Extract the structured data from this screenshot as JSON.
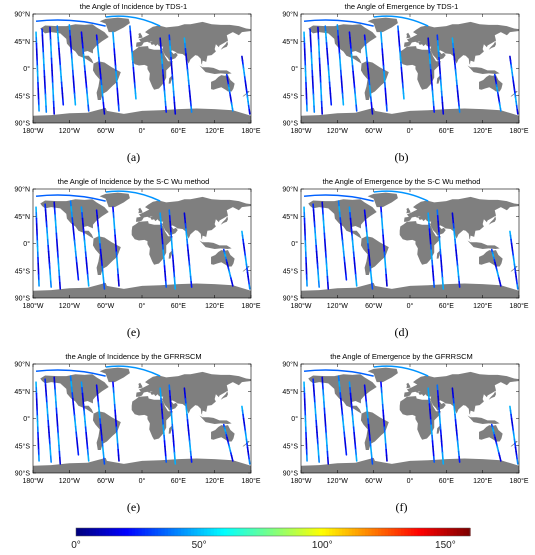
{
  "panels": [
    {
      "title": "the Angle of Incidence by TDS-1",
      "label": "(a)",
      "tracks": [
        [
          -175,
          60,
          -170,
          -70
        ],
        [
          -165,
          65,
          -158,
          -72
        ],
        [
          -152,
          68,
          -145,
          -75
        ],
        [
          -140,
          70,
          -130,
          -60
        ],
        [
          -120,
          72,
          -110,
          -60
        ],
        [
          -100,
          60,
          -88,
          -70
        ],
        [
          -75,
          55,
          -62,
          -75
        ],
        [
          -48,
          60,
          -38,
          -70
        ],
        [
          -20,
          70,
          -10,
          -50
        ],
        [
          30,
          50,
          40,
          -72
        ],
        [
          45,
          55,
          55,
          -75
        ],
        [
          70,
          50,
          82,
          -72
        ],
        [
          140,
          -10,
          150,
          -70
        ],
        [
          165,
          20,
          178,
          -75
        ]
      ],
      "arcs": [
        [
          -175,
          78,
          -60,
          70
        ],
        [
          -60,
          85,
          30,
          70
        ]
      ]
    },
    {
      "title": "the Angle of Emergence by TDS-1",
      "label": "(b)",
      "tracks": [
        [
          -175,
          60,
          -170,
          -70
        ],
        [
          -165,
          65,
          -158,
          -72
        ],
        [
          -152,
          68,
          -145,
          -75
        ],
        [
          -140,
          70,
          -130,
          -60
        ],
        [
          -120,
          72,
          -110,
          -60
        ],
        [
          -100,
          60,
          -88,
          -70
        ],
        [
          -75,
          55,
          -62,
          -75
        ],
        [
          -48,
          60,
          -38,
          -70
        ],
        [
          -20,
          70,
          -10,
          -50
        ],
        [
          30,
          50,
          40,
          -72
        ],
        [
          45,
          55,
          55,
          -75
        ],
        [
          70,
          50,
          82,
          -72
        ],
        [
          140,
          -10,
          150,
          -70
        ],
        [
          165,
          20,
          178,
          -75
        ]
      ],
      "arcs": [
        [
          -175,
          78,
          -60,
          70
        ],
        [
          -60,
          85,
          30,
          70
        ]
      ]
    },
    {
      "title": "the Angle of Incidence by the S-C Wu method",
      "label": "(e)",
      "tracks": [
        [
          -175,
          60,
          -170,
          -70
        ],
        [
          -160,
          65,
          -150,
          -72
        ],
        [
          -145,
          68,
          -135,
          -75
        ],
        [
          -118,
          70,
          -105,
          -60
        ],
        [
          -100,
          60,
          -88,
          -70
        ],
        [
          -75,
          55,
          -62,
          -75
        ],
        [
          -48,
          60,
          -38,
          -70
        ],
        [
          30,
          50,
          40,
          -72
        ],
        [
          45,
          55,
          55,
          -75
        ],
        [
          70,
          50,
          82,
          -72
        ],
        [
          135,
          -10,
          150,
          -70
        ],
        [
          165,
          20,
          178,
          -75
        ]
      ],
      "arcs": [
        [
          -175,
          78,
          -60,
          70
        ],
        [
          -60,
          85,
          30,
          70
        ]
      ]
    },
    {
      "title": "the Angle of Emergence by the S-C Wu method",
      "label": "(d)",
      "tracks": [
        [
          -175,
          60,
          -170,
          -70
        ],
        [
          -160,
          65,
          -150,
          -72
        ],
        [
          -145,
          68,
          -135,
          -75
        ],
        [
          -118,
          70,
          -105,
          -60
        ],
        [
          -100,
          60,
          -88,
          -70
        ],
        [
          -75,
          55,
          -62,
          -75
        ],
        [
          -48,
          60,
          -38,
          -70
        ],
        [
          30,
          50,
          40,
          -72
        ],
        [
          45,
          55,
          55,
          -75
        ],
        [
          70,
          50,
          82,
          -72
        ],
        [
          135,
          -10,
          150,
          -70
        ],
        [
          165,
          20,
          178,
          -75
        ]
      ],
      "arcs": [
        [
          -175,
          78,
          -60,
          70
        ],
        [
          -60,
          85,
          30,
          70
        ]
      ]
    },
    {
      "title": "the Angle of Incidence by the GFRRSCM",
      "label": "(e)",
      "tracks": [
        [
          -175,
          60,
          -170,
          -70
        ],
        [
          -160,
          65,
          -150,
          -72
        ],
        [
          -145,
          68,
          -135,
          -75
        ],
        [
          -118,
          70,
          -105,
          -60
        ],
        [
          -100,
          60,
          -88,
          -70
        ],
        [
          -75,
          55,
          -62,
          -75
        ],
        [
          -48,
          60,
          -38,
          -70
        ],
        [
          30,
          50,
          40,
          -72
        ],
        [
          45,
          55,
          55,
          -75
        ],
        [
          70,
          50,
          82,
          -72
        ],
        [
          135,
          -10,
          150,
          -70
        ],
        [
          165,
          20,
          178,
          -75
        ]
      ],
      "arcs": [
        [
          -175,
          78,
          -60,
          70
        ],
        [
          -60,
          85,
          30,
          70
        ]
      ]
    },
    {
      "title": "the Angle of Emergence by  the GFRRSCM",
      "label": "(f)",
      "tracks": [
        [
          -175,
          60,
          -170,
          -70
        ],
        [
          -160,
          65,
          -150,
          -72
        ],
        [
          -145,
          68,
          -135,
          -75
        ],
        [
          -118,
          70,
          -105,
          -60
        ],
        [
          -100,
          60,
          -88,
          -70
        ],
        [
          -75,
          55,
          -62,
          -75
        ],
        [
          -48,
          60,
          -38,
          -70
        ],
        [
          30,
          50,
          40,
          -72
        ],
        [
          45,
          55,
          55,
          -75
        ],
        [
          70,
          50,
          82,
          -72
        ],
        [
          135,
          -10,
          150,
          -70
        ],
        [
          165,
          20,
          178,
          -75
        ]
      ],
      "arcs": [
        [
          -175,
          78,
          -60,
          70
        ],
        [
          -60,
          85,
          30,
          70
        ]
      ]
    }
  ],
  "axes": {
    "lat_labels": [
      "90°N",
      "45°N",
      "0°",
      "45°S",
      "90°S"
    ],
    "lat_values": [
      90,
      45,
      0,
      -45,
      -90
    ],
    "lon_labels": [
      "180°W",
      "120°W",
      "60°W",
      "0°",
      "60°E",
      "120°E",
      "180°E"
    ],
    "lon_values": [
      -180,
      -120,
      -60,
      0,
      60,
      120,
      180
    ]
  },
  "colorbar": {
    "tick_labels": [
      "0°",
      "50°",
      "100°",
      "150°"
    ],
    "tick_values": [
      0,
      50,
      100,
      150
    ],
    "min": 0,
    "max": 160,
    "colormap": "jet"
  },
  "colors": {
    "land": "#7f7f7f",
    "ocean": "#ffffff",
    "axis": "#000000"
  }
}
